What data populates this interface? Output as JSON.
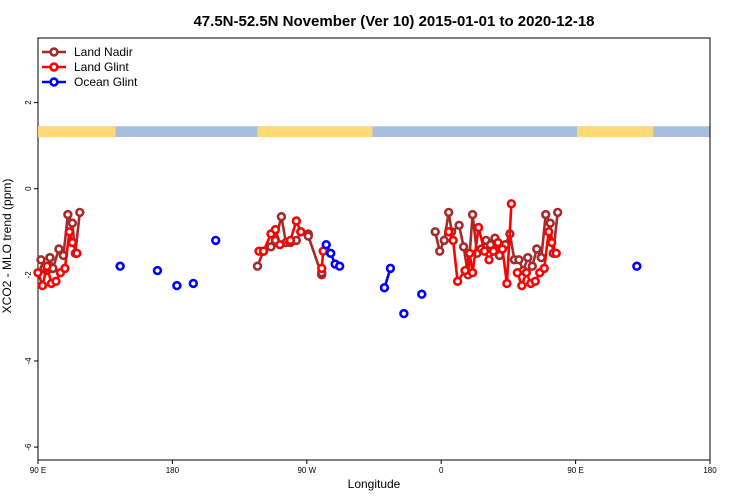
{
  "chart_data": {
    "type": "line",
    "title": "47.5N-52.5N November (Ver 10)   2015-01-01 to 2020-12-18",
    "xlabel": "Longitude",
    "ylabel": "XCO2 - MLO trend (ppm)",
    "x_ticks": [
      {
        "value": 90,
        "label": "90 E"
      },
      {
        "value": 180,
        "label": "180"
      },
      {
        "value": 270,
        "label": "90 W"
      },
      {
        "value": 360,
        "label": "0"
      },
      {
        "value": 450,
        "label": "90 E"
      },
      {
        "value": 540,
        "label": "180"
      }
    ],
    "y_ticks": [
      2,
      0,
      -2,
      -4,
      -6
    ],
    "xlim": [
      90,
      540
    ],
    "ylim": [
      -6.3,
      3.5
    ],
    "legend_position": "top-left",
    "colors": {
      "land_nadir": "#a52a2a",
      "land_glint": "#ff0000",
      "ocean_glint": "#0000ff",
      "land_band": "#ffd978",
      "ocean_band": "#a6bfe0"
    },
    "surface_band": {
      "y_range": [
        1.2,
        1.45
      ],
      "land_intervals": [
        [
          90,
          142
        ],
        [
          237,
          314
        ],
        [
          451,
          502
        ]
      ]
    },
    "series": [
      {
        "name": "Land Nadir",
        "color": "#a52a2a",
        "segments": [
          [
            [
              92,
              -1.65
            ],
            [
              94,
              -1.85
            ],
            [
              96,
              -1.9
            ],
            [
              98,
              -1.6
            ],
            [
              100,
              -1.85
            ],
            [
              104,
              -1.4
            ],
            [
              107,
              -1.55
            ],
            [
              110,
              -0.6
            ],
            [
              113,
              -0.8
            ],
            [
              115,
              -1.5
            ],
            [
              118,
              -0.55
            ]
          ],
          [
            [
              237,
              -1.8
            ],
            [
              241,
              -1.45
            ],
            [
              246,
              -1.35
            ],
            [
              249,
              -1.2
            ],
            [
              253,
              -0.65
            ],
            [
              256,
              -1.25
            ],
            [
              259,
              -1.25
            ],
            [
              263,
              -1.2
            ],
            [
              266,
              -1.0
            ],
            [
              271,
              -1.05
            ],
            [
              271,
              -1.1
            ],
            [
              280,
              -2.0
            ],
            [
              280,
              -1.95
            ]
          ],
          [
            [
              356,
              -1.0
            ],
            [
              359,
              -1.45
            ],
            [
              362,
              -1.2
            ],
            [
              365,
              -0.55
            ],
            [
              367,
              -1.0
            ],
            [
              372,
              -0.85
            ],
            [
              375,
              -1.35
            ],
            [
              378,
              -2.0
            ],
            [
              381,
              -0.6
            ],
            [
              384,
              -1.5
            ],
            [
              387,
              -1.4
            ],
            [
              390,
              -1.2
            ],
            [
              393,
              -1.3
            ],
            [
              396,
              -1.15
            ],
            [
              399,
              -1.55
            ],
            [
              403,
              -1.3
            ],
            [
              406,
              -1.05
            ],
            [
              409,
              -1.65
            ],
            [
              412,
              -1.65
            ],
            [
              415,
              -1.9
            ],
            [
              418,
              -1.6
            ],
            [
              421,
              -1.8
            ],
            [
              424,
              -1.4
            ],
            [
              427,
              -1.6
            ],
            [
              430,
              -0.6
            ],
            [
              433,
              -0.8
            ],
            [
              435,
              -1.5
            ],
            [
              438,
              -0.55
            ]
          ]
        ]
      },
      {
        "name": "Land Glint",
        "color": "#ff0000",
        "segments": [
          [
            [
              90,
              -1.95
            ],
            [
              93,
              -2.25
            ],
            [
              96,
              -1.8
            ],
            [
              99,
              -2.2
            ],
            [
              102,
              -2.15
            ],
            [
              105,
              -1.95
            ],
            [
              108,
              -1.85
            ],
            [
              111,
              -1.0
            ],
            [
              113,
              -1.25
            ],
            [
              116,
              -1.5
            ]
          ],
          [
            [
              238,
              -1.45
            ],
            [
              241,
              -1.45
            ],
            [
              246,
              -1.05
            ],
            [
              249,
              -0.95
            ],
            [
              252,
              -1.3
            ],
            [
              259,
              -1.2
            ],
            [
              263,
              -0.75
            ],
            [
              266,
              -1.0
            ]
          ],
          [
            [
              280,
              -1.85
            ],
            [
              281,
              -1.45
            ]
          ],
          [
            [
              365,
              -1.0
            ],
            [
              368,
              -1.2
            ],
            [
              371,
              -2.15
            ],
            [
              376,
              -1.9
            ],
            [
              379,
              -1.5
            ],
            [
              381,
              -1.95
            ],
            [
              385,
              -0.9
            ],
            [
              389,
              -1.45
            ],
            [
              392,
              -1.65
            ],
            [
              395,
              -1.45
            ],
            [
              398,
              -1.25
            ],
            [
              401,
              -1.4
            ],
            [
              404,
              -2.2
            ],
            [
              407,
              -0.35
            ]
          ],
          [
            [
              411,
              -1.95
            ],
            [
              414,
              -2.25
            ],
            [
              417,
              -1.95
            ],
            [
              420,
              -2.2
            ],
            [
              423,
              -2.15
            ],
            [
              426,
              -1.95
            ],
            [
              429,
              -1.85
            ],
            [
              432,
              -1.0
            ],
            [
              434,
              -1.25
            ],
            [
              437,
              -1.5
            ]
          ]
        ]
      },
      {
        "name": "Ocean Glint",
        "color": "#0000ff",
        "segments": [
          [
            [
              145,
              -1.8
            ]
          ],
          [
            [
              170,
              -1.9
            ]
          ],
          [
            [
              183,
              -2.25
            ]
          ],
          [
            [
              194,
              -2.2
            ]
          ],
          [
            [
              209,
              -1.2
            ]
          ],
          [
            [
              283,
              -1.3
            ],
            [
              286,
              -1.5
            ],
            [
              289,
              -1.75
            ],
            [
              292,
              -1.8
            ]
          ],
          [
            [
              322,
              -2.3
            ],
            [
              326,
              -1.85
            ]
          ],
          [
            [
              335,
              -2.9
            ]
          ],
          [
            [
              347,
              -2.45
            ]
          ],
          [
            [
              491,
              -1.8
            ]
          ]
        ]
      }
    ]
  }
}
